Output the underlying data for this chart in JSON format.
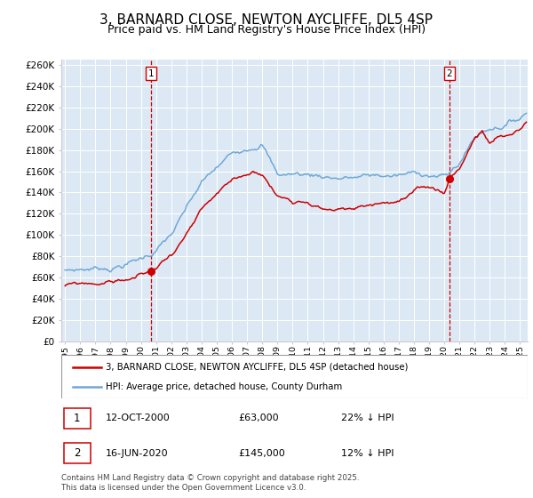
{
  "title": "3, BARNARD CLOSE, NEWTON AYCLIFFE, DL5 4SP",
  "subtitle": "Price paid vs. HM Land Registry's House Price Index (HPI)",
  "hpi_color": "#6fa8d6",
  "property_color": "#cc0000",
  "plot_bg": "#dce9f5",
  "ylim": [
    0,
    265000
  ],
  "yticks": [
    0,
    20000,
    40000,
    60000,
    80000,
    100000,
    120000,
    140000,
    160000,
    180000,
    200000,
    220000,
    240000,
    260000
  ],
  "ytick_labels": [
    "£0",
    "£20K",
    "£40K",
    "£60K",
    "£80K",
    "£100K",
    "£120K",
    "£140K",
    "£160K",
    "£180K",
    "£200K",
    "£220K",
    "£240K",
    "£260K"
  ],
  "legend1": "3, BARNARD CLOSE, NEWTON AYCLIFFE, DL5 4SP (detached house)",
  "legend2": "HPI: Average price, detached house, County Durham",
  "footer": "Contains HM Land Registry data © Crown copyright and database right 2025.\nThis data is licensed under the Open Government Licence v3.0.",
  "title_fontsize": 11,
  "subtitle_fontsize": 9
}
